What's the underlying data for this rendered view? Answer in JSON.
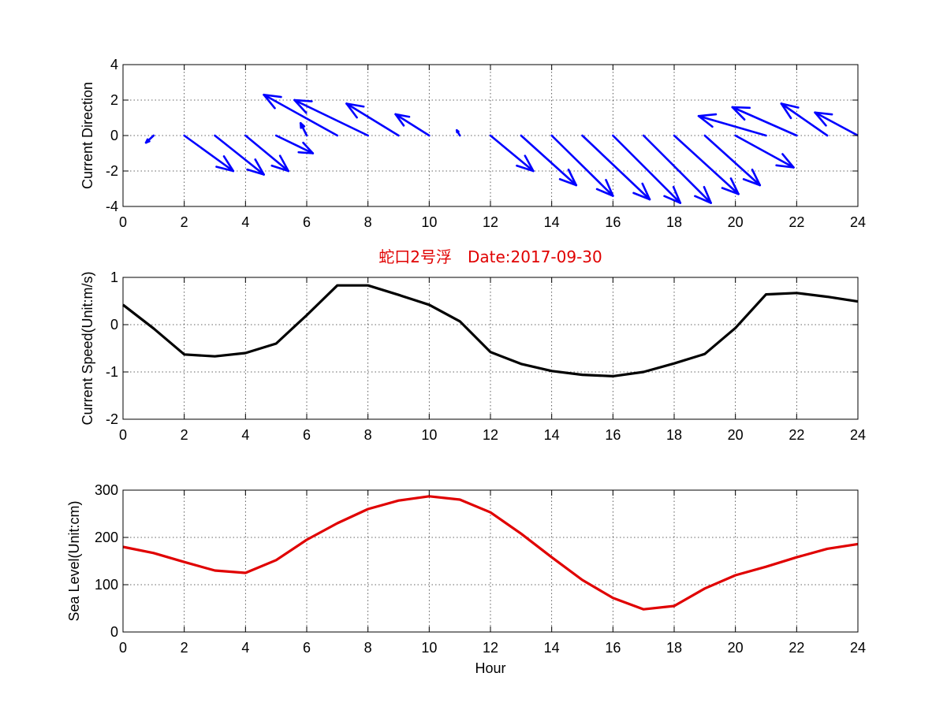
{
  "chart_data": [
    {
      "type": "quiver",
      "ylabel": "Current Direction",
      "xlim": [
        0,
        24
      ],
      "ylim": [
        -4,
        4
      ],
      "xticks": [
        0,
        2,
        4,
        6,
        8,
        10,
        12,
        14,
        16,
        18,
        20,
        22,
        24
      ],
      "yticks": [
        -4,
        -2,
        0,
        2,
        4
      ],
      "grid": true,
      "arrow_color": "#0000ff",
      "vectors": [
        {
          "x": 1,
          "y": 0,
          "u": -0.25,
          "v": -0.4
        },
        {
          "x": 2,
          "y": 0,
          "u": 1.6,
          "v": -2.0
        },
        {
          "x": 3,
          "y": 0,
          "u": 1.6,
          "v": -2.2
        },
        {
          "x": 4,
          "y": 0,
          "u": 1.4,
          "v": -2.0
        },
        {
          "x": 5,
          "y": 0,
          "u": 1.2,
          "v": -1.0
        },
        {
          "x": 6,
          "y": 0,
          "u": -0.2,
          "v": 0.7
        },
        {
          "x": 7,
          "y": 0,
          "u": -2.4,
          "v": 2.3
        },
        {
          "x": 8,
          "y": 0,
          "u": -2.4,
          "v": 2.0
        },
        {
          "x": 9,
          "y": 0,
          "u": -1.7,
          "v": 1.8
        },
        {
          "x": 10,
          "y": 0,
          "u": -1.1,
          "v": 1.2
        },
        {
          "x": 11,
          "y": 0,
          "u": -0.1,
          "v": 0.3
        },
        {
          "x": 12,
          "y": 0,
          "u": 1.4,
          "v": -2.0
        },
        {
          "x": 13,
          "y": 0,
          "u": 1.8,
          "v": -2.8
        },
        {
          "x": 14,
          "y": 0,
          "u": 2.0,
          "v": -3.4
        },
        {
          "x": 15,
          "y": 0,
          "u": 2.2,
          "v": -3.6
        },
        {
          "x": 16,
          "y": 0,
          "u": 2.2,
          "v": -3.8
        },
        {
          "x": 17,
          "y": 0,
          "u": 2.2,
          "v": -3.8
        },
        {
          "x": 18,
          "y": 0,
          "u": 2.1,
          "v": -3.3
        },
        {
          "x": 19,
          "y": 0,
          "u": 1.8,
          "v": -2.8
        },
        {
          "x": 20,
          "y": 0,
          "u": 1.9,
          "v": -1.8
        },
        {
          "x": 21,
          "y": 0,
          "u": -2.2,
          "v": 1.1
        },
        {
          "x": 22,
          "y": 0,
          "u": -2.1,
          "v": 1.6
        },
        {
          "x": 23,
          "y": 0,
          "u": -1.5,
          "v": 1.8
        },
        {
          "x": 24,
          "y": 0,
          "u": -1.4,
          "v": 1.3
        }
      ]
    },
    {
      "type": "line",
      "title": "蛇口2号浮　Date:2017-09-30",
      "ylabel": "Current Speed(Unit:m/s)",
      "xlim": [
        0,
        24
      ],
      "ylim": [
        -2,
        1
      ],
      "xticks": [
        0,
        2,
        4,
        6,
        8,
        10,
        12,
        14,
        16,
        18,
        20,
        22,
        24
      ],
      "yticks": [
        -2,
        -1,
        0,
        1
      ],
      "grid": true,
      "line_color": "#000000",
      "x": [
        0,
        1,
        2,
        3,
        4,
        5,
        6,
        7,
        8,
        9,
        10,
        11,
        12,
        13,
        14,
        15,
        16,
        17,
        18,
        19,
        20,
        21,
        22,
        23,
        24
      ],
      "y": [
        0.42,
        -0.08,
        -0.63,
        -0.67,
        -0.6,
        -0.4,
        0.2,
        0.83,
        0.83,
        0.63,
        0.42,
        0.07,
        -0.58,
        -0.83,
        -0.98,
        -1.06,
        -1.09,
        -1.0,
        -0.82,
        -0.62,
        -0.07,
        0.64,
        0.67,
        0.59,
        0.49
      ]
    },
    {
      "type": "line",
      "xlabel": "Hour",
      "ylabel": "Sea Level(Unit:cm)",
      "xlim": [
        0,
        24
      ],
      "ylim": [
        0,
        300
      ],
      "xticks": [
        0,
        2,
        4,
        6,
        8,
        10,
        12,
        14,
        16,
        18,
        20,
        22,
        24
      ],
      "yticks": [
        0,
        100,
        200,
        300
      ],
      "grid": true,
      "line_color": "#e00000",
      "x": [
        0,
        1,
        2,
        3,
        4,
        5,
        6,
        7,
        8,
        9,
        10,
        11,
        12,
        13,
        14,
        15,
        16,
        17,
        18,
        19,
        20,
        21,
        22,
        23,
        24
      ],
      "y": [
        180,
        167,
        148,
        130,
        125,
        152,
        195,
        230,
        260,
        278,
        287,
        280,
        253,
        208,
        158,
        110,
        72,
        48,
        55,
        92,
        120,
        138,
        158,
        176,
        186
      ]
    }
  ]
}
